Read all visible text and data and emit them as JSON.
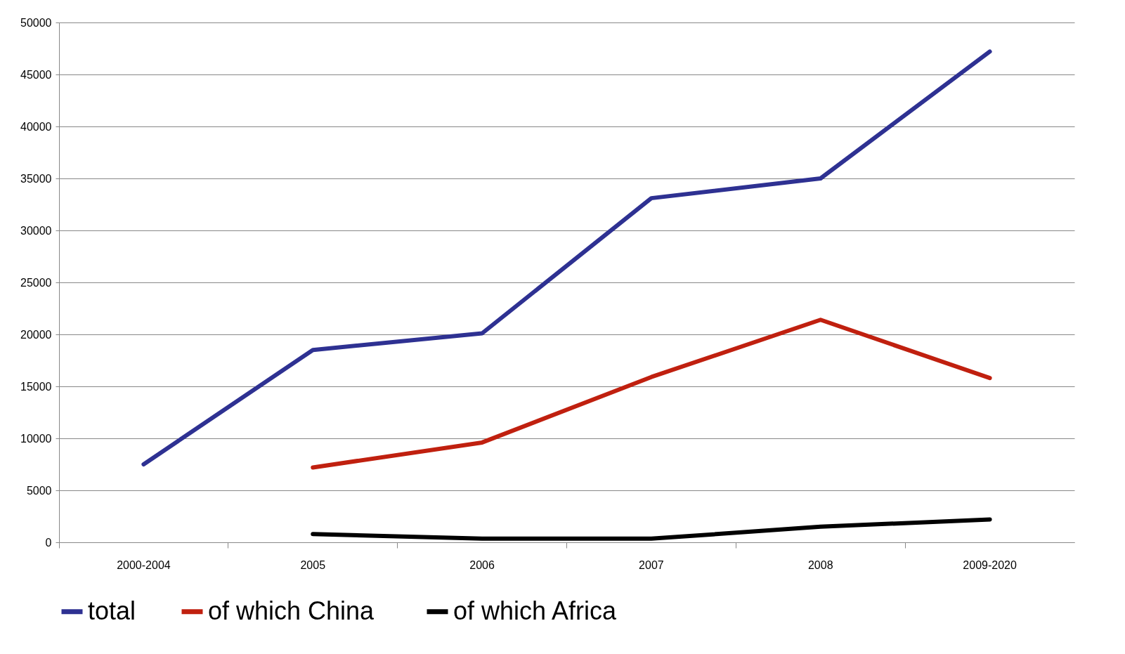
{
  "chart_data": {
    "type": "line",
    "categories": [
      "2000-2004",
      "2005",
      "2006",
      "2007",
      "2008",
      "2009-2020"
    ],
    "series": [
      {
        "name": "total",
        "color": "#2e3192",
        "values": [
          7500,
          18500,
          20100,
          33100,
          35000,
          47200
        ]
      },
      {
        "name": "of which  China",
        "color": "#c0200f",
        "values": [
          null,
          7200,
          9600,
          15900,
          21400,
          15800
        ]
      },
      {
        "name": "of which Africa",
        "color": "#000000",
        "values": [
          null,
          800,
          350,
          350,
          1500,
          2200
        ]
      }
    ],
    "ylim": [
      0,
      50000
    ],
    "yticks": [
      0,
      5000,
      10000,
      15000,
      20000,
      25000,
      30000,
      35000,
      40000,
      45000,
      50000
    ],
    "grid": "y",
    "legend": "bottom",
    "marker": "none",
    "line_style": "solid"
  }
}
